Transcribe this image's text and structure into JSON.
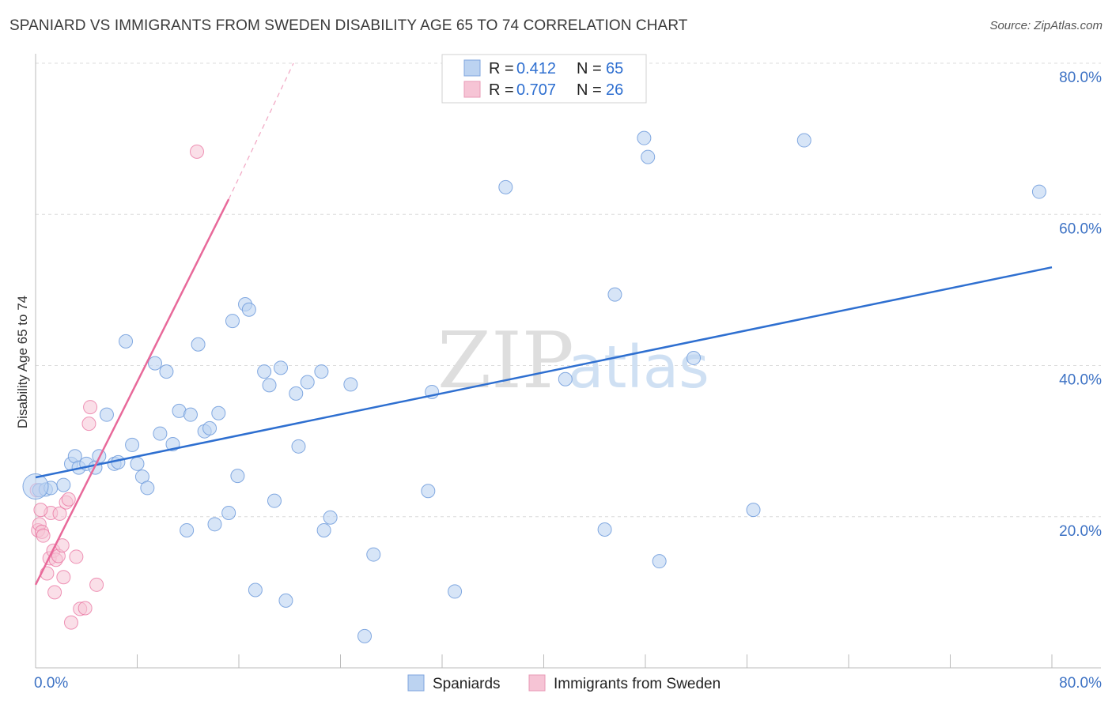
{
  "title": "SPANIARD VS IMMIGRANTS FROM SWEDEN DISABILITY AGE 65 TO 74 CORRELATION CHART",
  "source": "Source: ZipAtlas.com",
  "watermark": {
    "zip": "ZIP",
    "atlas": "atlas"
  },
  "colors": {
    "blue": "#2e6fd0",
    "blue_fill": "#bcd3f1",
    "pink": "#e8699a",
    "pink_fill": "#f6c4d5",
    "grid": "#dcdcdc",
    "tick_text": "#3d72c4"
  },
  "legend": {
    "rows": [
      {
        "r_label": "R =",
        "r_value": "0.412",
        "n_label": "N =",
        "n_value": "65"
      },
      {
        "r_label": "R =",
        "r_value": "0.707",
        "n_label": "N =",
        "n_value": "26"
      }
    ]
  },
  "bottom_legend": [
    "Spaniards",
    "Immigrants from Sweden"
  ],
  "chart_data": {
    "type": "scatter",
    "title": "SPANIARD VS IMMIGRANTS FROM SWEDEN DISABILITY AGE 65 TO 74 CORRELATION CHART",
    "xlabel": "",
    "ylabel": "Disability Age 65 to 74",
    "xlim": [
      0,
      80
    ],
    "ylim": [
      0,
      80
    ],
    "x_tick_labels": [
      "0.0%",
      "80.0%"
    ],
    "y_tick_labels": [
      {
        "value": 80,
        "label": "80.0%"
      },
      {
        "value": 60,
        "label": "60.0%"
      },
      {
        "value": 40,
        "label": "40.0%"
      },
      {
        "value": 20,
        "label": "20.0%"
      }
    ],
    "series": [
      {
        "name": "Spaniards",
        "r": 0.412,
        "n": 65,
        "trend": {
          "x0": 0,
          "y0": 25.2,
          "x1": 80,
          "y1": 53.0
        },
        "points": [
          [
            0.3,
            23.5
          ],
          [
            0.8,
            23.6
          ],
          [
            1.2,
            23.8
          ],
          [
            2.2,
            24.2
          ],
          [
            2.8,
            27.0
          ],
          [
            3.1,
            28.0
          ],
          [
            3.4,
            26.5
          ],
          [
            4.0,
            27.0
          ],
          [
            4.7,
            26.5
          ],
          [
            5.0,
            28.0
          ],
          [
            5.6,
            33.5
          ],
          [
            6.2,
            27.0
          ],
          [
            6.5,
            27.2
          ],
          [
            7.1,
            43.2
          ],
          [
            7.6,
            29.5
          ],
          [
            8.0,
            27.0
          ],
          [
            8.4,
            25.3
          ],
          [
            8.8,
            23.8
          ],
          [
            9.4,
            40.3
          ],
          [
            9.8,
            31.0
          ],
          [
            10.3,
            39.2
          ],
          [
            10.8,
            29.6
          ],
          [
            11.3,
            34.0
          ],
          [
            11.9,
            18.2
          ],
          [
            12.2,
            33.5
          ],
          [
            12.8,
            42.8
          ],
          [
            13.3,
            31.3
          ],
          [
            13.7,
            31.7
          ],
          [
            14.1,
            19.0
          ],
          [
            14.4,
            33.7
          ],
          [
            15.2,
            20.5
          ],
          [
            15.5,
            45.9
          ],
          [
            15.9,
            25.4
          ],
          [
            16.5,
            48.1
          ],
          [
            16.8,
            47.4
          ],
          [
            17.3,
            10.3
          ],
          [
            18.0,
            39.2
          ],
          [
            18.4,
            37.4
          ],
          [
            18.8,
            22.1
          ],
          [
            19.3,
            39.7
          ],
          [
            19.7,
            8.9
          ],
          [
            20.5,
            36.3
          ],
          [
            20.7,
            29.3
          ],
          [
            21.4,
            37.8
          ],
          [
            22.5,
            39.2
          ],
          [
            22.7,
            18.2
          ],
          [
            23.2,
            19.9
          ],
          [
            24.8,
            37.5
          ],
          [
            25.9,
            4.2
          ],
          [
            26.6,
            15.0
          ],
          [
            30.9,
            23.4
          ],
          [
            31.2,
            36.5
          ],
          [
            33.0,
            10.1
          ],
          [
            37.0,
            63.6
          ],
          [
            41.7,
            38.2
          ],
          [
            44.8,
            18.3
          ],
          [
            45.6,
            49.4
          ],
          [
            47.9,
            70.1
          ],
          [
            48.2,
            67.6
          ],
          [
            49.1,
            14.1
          ],
          [
            51.8,
            41.0
          ],
          [
            56.5,
            20.9
          ],
          [
            60.5,
            69.8
          ],
          [
            79.0,
            63.0
          ],
          [
            0.0,
            24.0
          ]
        ]
      },
      {
        "name": "Immigrants from Sweden",
        "r": 0.707,
        "n": 26,
        "trend": {
          "x0": 0,
          "y0": 11.0,
          "x1": 15.2,
          "y1": 62.0,
          "dash_x1": 20.3,
          "dash_y1": 80.0
        },
        "points": [
          [
            0.1,
            23.5
          ],
          [
            0.2,
            18.2
          ],
          [
            0.3,
            19.0
          ],
          [
            0.5,
            18.0
          ],
          [
            0.6,
            17.5
          ],
          [
            0.9,
            12.5
          ],
          [
            1.1,
            14.5
          ],
          [
            1.2,
            20.5
          ],
          [
            1.4,
            15.5
          ],
          [
            1.5,
            10.0
          ],
          [
            1.6,
            14.3
          ],
          [
            1.8,
            14.8
          ],
          [
            1.9,
            20.4
          ],
          [
            2.1,
            16.2
          ],
          [
            2.2,
            12.0
          ],
          [
            2.4,
            21.9
          ],
          [
            2.6,
            22.3
          ],
          [
            2.8,
            6.0
          ],
          [
            3.2,
            14.7
          ],
          [
            3.5,
            7.8
          ],
          [
            3.9,
            7.9
          ],
          [
            4.2,
            32.3
          ],
          [
            4.3,
            34.5
          ],
          [
            4.8,
            11.0
          ],
          [
            12.7,
            68.3
          ],
          [
            0.4,
            20.9
          ]
        ]
      }
    ]
  }
}
